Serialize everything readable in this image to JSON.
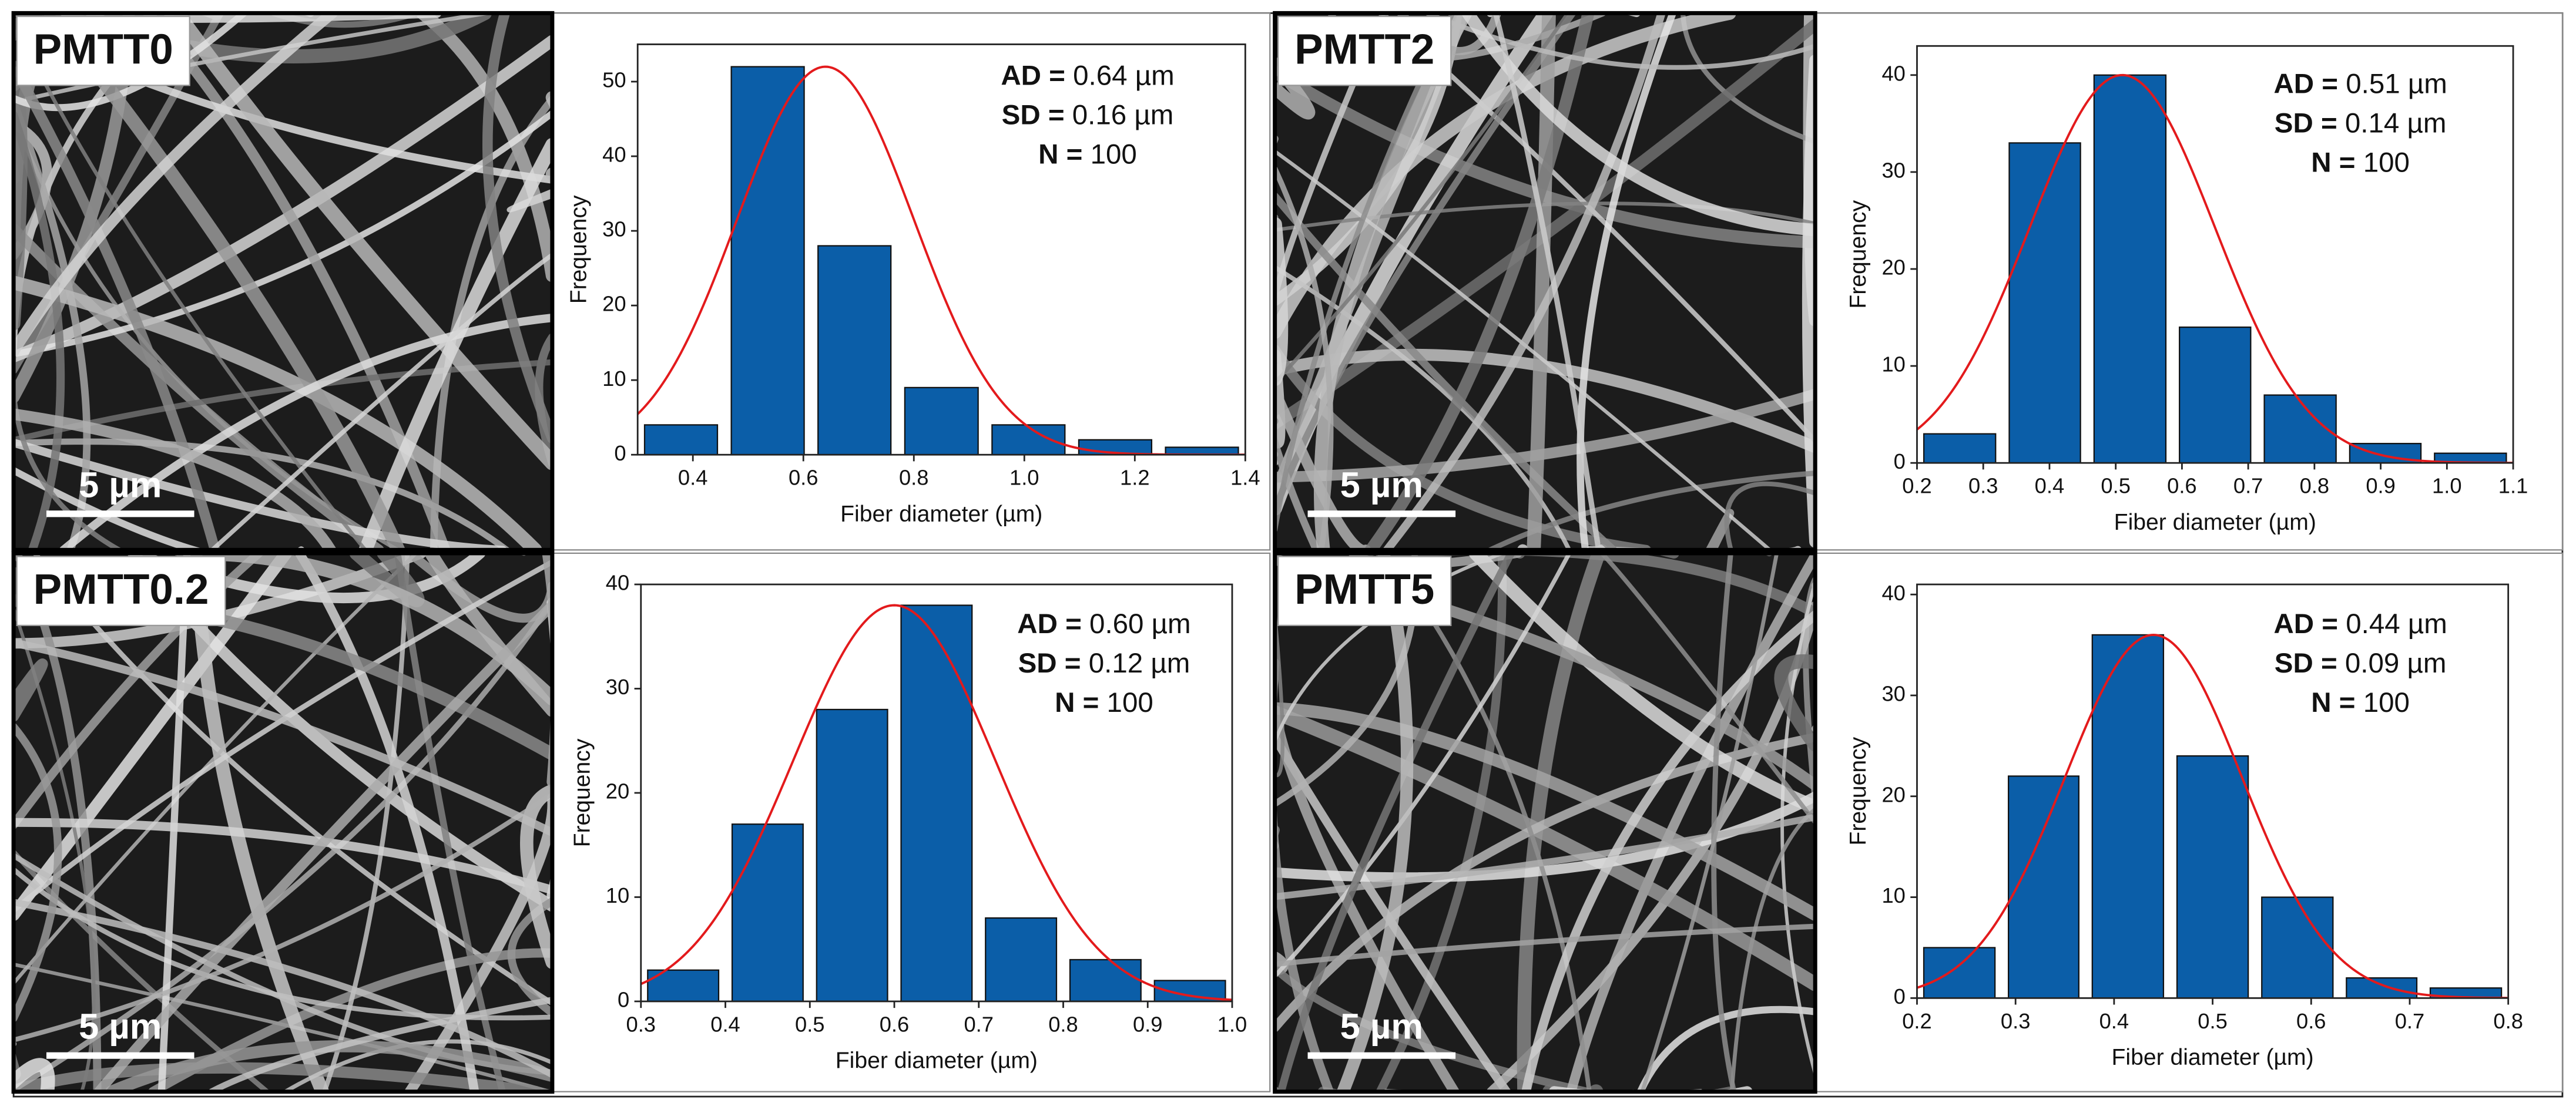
{
  "chart_data": [
    {
      "type": "histogram",
      "image_label": "PMTT0",
      "scale_bar": "5 µm",
      "bins": [
        0.3,
        0.457,
        0.614,
        0.771,
        0.929,
        1.086,
        1.243,
        1.4
      ],
      "values": [
        4,
        52,
        28,
        9,
        4,
        2,
        1
      ],
      "color": "#0b5ea8",
      "xlim": [
        0.3,
        1.4
      ],
      "ylim": [
        0,
        55
      ],
      "xticks": [
        0.4,
        0.6,
        0.8,
        {
          "value": 1,
          "label": "1.0"
        },
        1.2,
        1.4
      ],
      "yticks": [
        0,
        10,
        20,
        30,
        40,
        50
      ],
      "xlabel": "Fiber diameter (µm)",
      "ylabel": "Frequency",
      "annotations": [
        {
          "label": "AD =",
          "value": 0.64,
          "value_label": "0.64 µm"
        },
        {
          "label": "SD =",
          "value": 0.16,
          "value_label": "0.16 µm"
        },
        {
          "label": "N =",
          "value": 100
        }
      ],
      "fit": {
        "color": "#e31a1c",
        "amplitude": 52
      }
    },
    {
      "type": "histogram",
      "image_label": "PMTT2",
      "scale_bar": "5 µm",
      "bins": [
        0.2,
        0.329,
        0.457,
        0.586,
        0.714,
        0.843,
        0.971,
        1.1
      ],
      "values": [
        3,
        33,
        40,
        14,
        7,
        2,
        1
      ],
      "color": "#0b5ea8",
      "xlim": [
        0.2,
        1.1
      ],
      "ylim": [
        0,
        43
      ],
      "xticks": [
        0.2,
        0.3,
        0.4,
        0.5,
        0.6,
        0.7,
        0.8,
        0.9,
        {
          "value": 1,
          "label": "1.0"
        },
        1.1
      ],
      "yticks": [
        0,
        10,
        20,
        30,
        40
      ],
      "xlabel": "Fiber diameter (µm)",
      "ylabel": "Frequency",
      "annotations": [
        {
          "label": "AD =",
          "value": 0.51,
          "value_label": "0.51 µm"
        },
        {
          "label": "SD =",
          "value": 0.14,
          "value_label": "0.14 µm"
        },
        {
          "label": "N =",
          "value": 100
        }
      ],
      "fit": {
        "color": "#e31a1c",
        "amplitude": 40
      }
    },
    {
      "type": "histogram",
      "image_label": "PMTT0.2",
      "scale_bar": "5 µm",
      "bins": [
        0.3,
        0.4,
        0.5,
        0.6,
        0.7,
        0.8,
        0.9,
        1.0
      ],
      "values": [
        3,
        17,
        28,
        38,
        8,
        4,
        2
      ],
      "color": "#0b5ea8",
      "xlim": [
        0.3,
        1.0
      ],
      "ylim": [
        0,
        40
      ],
      "xticks": [
        0.3,
        0.4,
        0.5,
        0.6,
        0.7,
        0.8,
        0.9,
        {
          "value": 1,
          "label": "1.0"
        }
      ],
      "yticks": [
        0,
        10,
        20,
        30,
        40
      ],
      "xlabel": "Fiber diameter (µm)",
      "ylabel": "Frequency",
      "annotations": [
        {
          "label": "AD =",
          "value": 0.6,
          "value_label": "0.60 µm"
        },
        {
          "label": "SD =",
          "value": 0.12,
          "value_label": "0.12 µm"
        },
        {
          "label": "N =",
          "value": 100
        }
      ],
      "fit": {
        "color": "#e31a1c",
        "amplitude": 38
      }
    },
    {
      "type": "histogram",
      "image_label": "PMTT5",
      "scale_bar": "5 µm",
      "bins": [
        0.2,
        0.286,
        0.371,
        0.457,
        0.543,
        0.629,
        0.714,
        0.8
      ],
      "values": [
        5,
        22,
        36,
        24,
        10,
        2,
        1
      ],
      "color": "#0b5ea8",
      "xlim": [
        0.2,
        0.8
      ],
      "ylim": [
        0,
        41
      ],
      "xticks": [
        0.2,
        0.3,
        0.4,
        0.5,
        0.6,
        0.7,
        0.8
      ],
      "yticks": [
        0,
        10,
        20,
        30,
        40
      ],
      "xlabel": "Fiber diameter (µm)",
      "ylabel": "Frequency",
      "annotations": [
        {
          "label": "AD =",
          "value": 0.44,
          "value_label": "0.44 µm"
        },
        {
          "label": "SD =",
          "value": 0.09,
          "value_label": "0.09 µm"
        },
        {
          "label": "N =",
          "value": 100
        }
      ],
      "fit": {
        "color": "#e31a1c",
        "amplitude": 36
      }
    }
  ]
}
